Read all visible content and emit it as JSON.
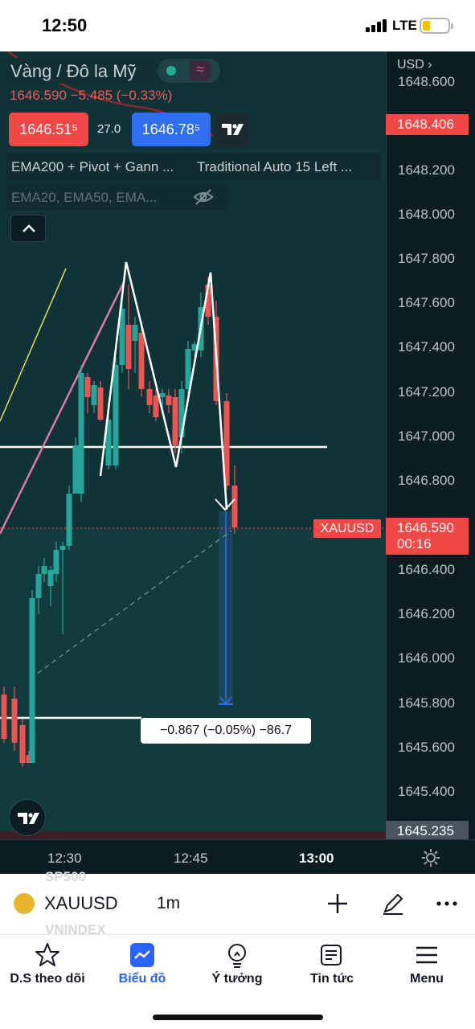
{
  "status_bar": {
    "time": "12:50",
    "network": "LTE"
  },
  "chart": {
    "title": "Vàng / Đô la Mỹ",
    "change": "1646.590  −5.485 (−0.33%)",
    "sell_price": "1646.51⁵",
    "spread": "27.0",
    "buy_price": "1646.78⁵",
    "indicators_1": "EMA200 + Pivot + Gann ...",
    "indicators_2": "Traditional Auto 15 Left ...",
    "indicators_3": "EMA20, EMA50, EMA...",
    "currency": "USD",
    "price_ticks": [
      "1648.600",
      "1648.200",
      "1648.000",
      "1647.800",
      "1647.600",
      "1647.400",
      "1647.200",
      "1647.000",
      "1646.800",
      "1646.400",
      "1646.200",
      "1646.000",
      "1645.800",
      "1645.600",
      "1645.400"
    ],
    "top_tag": "1648.406",
    "last_price": "1646.590",
    "countdown": "00:16",
    "bottom_tag": "1645.235",
    "symbol_tag": "XAUUSD",
    "measure_label": "−0.867 (−0.05%) −86.7",
    "time_ticks": [
      "12:30",
      "12:45",
      "13:00"
    ],
    "colors": {
      "bg": "#0f3336",
      "up": "#26a69a",
      "down": "#ef5350",
      "accent_red": "#f04747",
      "accent_blue": "#2f6ef0"
    }
  },
  "symbol_bar": {
    "ghost_top": "SP500",
    "ghost_bottom": "VNINDEX",
    "symbol": "XAUUSD",
    "timeframe": "1m",
    "icons": [
      "plus-icon",
      "pen-icon",
      "more-icon"
    ]
  },
  "bottom_nav": [
    {
      "label": "D.S theo dõi",
      "icon": "star-icon"
    },
    {
      "label": "Biểu đồ",
      "icon": "chart-icon",
      "active": true
    },
    {
      "label": "Ý tưởng",
      "icon": "bulb-icon"
    },
    {
      "label": "Tin tức",
      "icon": "news-icon"
    },
    {
      "label": "Menu",
      "icon": "menu-icon"
    }
  ]
}
